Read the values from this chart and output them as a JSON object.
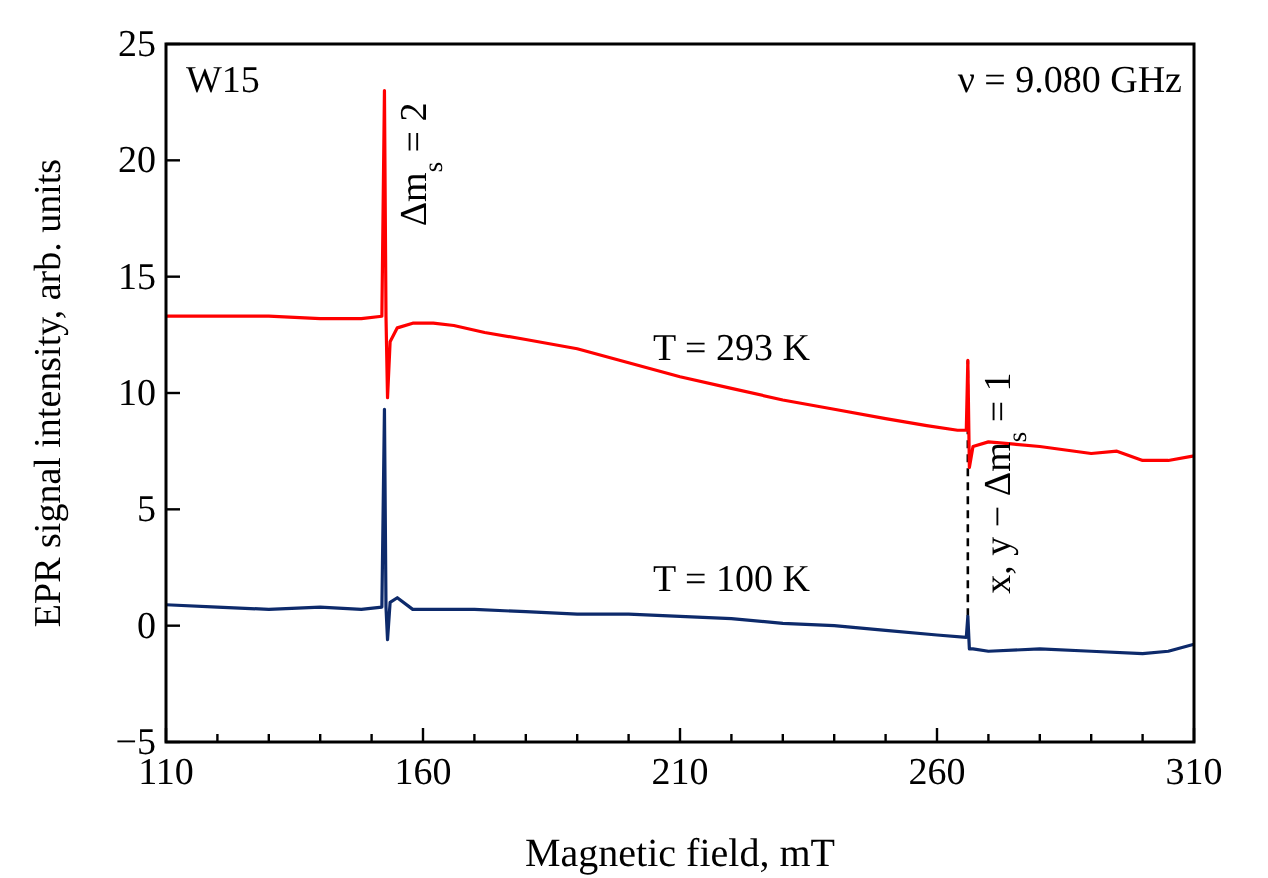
{
  "chart_data": {
    "type": "line",
    "xlabel": "Magnetic field, mT",
    "ylabel": "EPR signal intensity, arb. units",
    "xlim": [
      110,
      310
    ],
    "ylim": [
      -5,
      25
    ],
    "xticks": [
      110,
      {
        "value": 120,
        "label": null
      },
      {
        "value": 130,
        "label": null
      },
      {
        "value": 140,
        "label": null
      },
      {
        "value": 150,
        "label": null
      },
      160,
      {
        "value": 170,
        "label": null
      },
      {
        "value": 180,
        "label": null
      },
      {
        "value": 190,
        "label": null
      },
      {
        "value": 200,
        "label": null
      },
      210,
      {
        "value": 220,
        "label": null
      },
      {
        "value": 230,
        "label": null
      },
      {
        "value": 240,
        "label": null
      },
      {
        "value": 250,
        "label": null
      },
      260,
      {
        "value": 270,
        "label": null
      },
      {
        "value": 280,
        "label": null
      },
      {
        "value": 290,
        "label": null
      },
      {
        "value": 300,
        "label": null
      },
      310
    ],
    "yticks": [
      -5,
      0,
      5,
      10,
      15,
      20,
      25
    ],
    "grid": false,
    "legend": false,
    "line_style": "solid",
    "series": [
      {
        "name": "T = 293 K",
        "color": "#ff0000",
        "x": [
          110,
          120,
          130,
          140,
          148,
          152,
          152.5,
          152.8,
          153.1,
          153.6,
          155,
          158,
          162,
          166,
          172,
          180,
          190,
          200,
          210,
          220,
          230,
          240,
          250,
          258,
          264,
          265.7,
          266,
          266.3,
          267,
          270,
          275,
          280,
          290,
          295,
          300,
          305,
          310
        ],
        "values": [
          13.3,
          13.3,
          13.3,
          13.2,
          13.2,
          13.3,
          23,
          13.3,
          9.8,
          12.2,
          12.8,
          13.0,
          13.0,
          12.9,
          12.6,
          12.3,
          11.9,
          11.3,
          10.7,
          10.2,
          9.7,
          9.3,
          8.9,
          8.6,
          8.4,
          8.4,
          11.4,
          6.8,
          7.7,
          7.9,
          7.8,
          7.7,
          7.4,
          7.5,
          7.1,
          7.1,
          7.3
        ]
      },
      {
        "name": "T = 100 K",
        "color": "#0d2a6b",
        "x": [
          110,
          120,
          130,
          140,
          148,
          152,
          152.5,
          152.8,
          153.1,
          153.6,
          155,
          158,
          162,
          170,
          180,
          190,
          200,
          210,
          220,
          230,
          240,
          250,
          260,
          265.7,
          266,
          266.3,
          267,
          270,
          280,
          290,
          300,
          305,
          310
        ],
        "values": [
          0.9,
          0.8,
          0.7,
          0.8,
          0.7,
          0.8,
          9.3,
          0.8,
          -0.6,
          1.0,
          1.2,
          0.7,
          0.7,
          0.7,
          0.6,
          0.5,
          0.5,
          0.4,
          0.3,
          0.1,
          0.0,
          -0.2,
          -0.4,
          -0.5,
          0.4,
          -1.0,
          -1.0,
          -1.1,
          -1.0,
          -1.1,
          -1.2,
          -1.1,
          -0.8
        ]
      }
    ],
    "ref_lines": [
      {
        "axis": "x",
        "value": 266,
        "label": null,
        "color": "#000000",
        "line_style": "dashed"
      }
    ],
    "annotations": [
      "W15",
      "ν = 9.080 GHz",
      {
        "text": "Δm$_{s}$ = 2",
        "x": 152.5,
        "y": 23
      },
      {
        "text": "x, y − Δm$_{s}$ = 1",
        "x": 266,
        "y": 11.4
      }
    ]
  }
}
